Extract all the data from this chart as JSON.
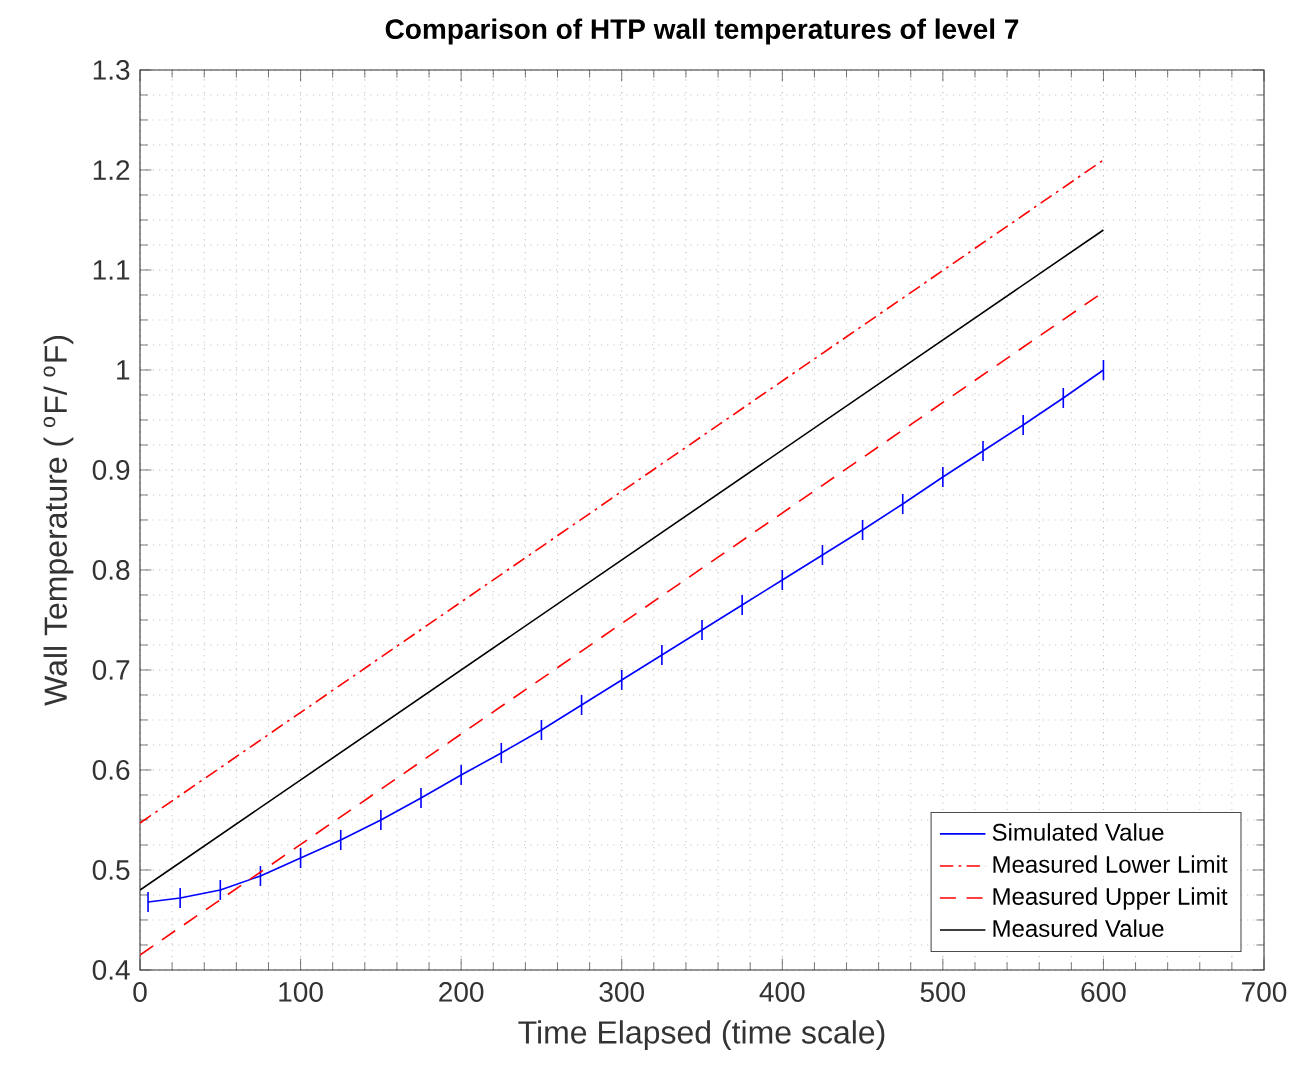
{
  "chart_data": {
    "type": "line",
    "title": "Comparison of HTP wall temperatures of level 7",
    "xlabel": "Time Elapsed (time scale)",
    "ylabel": "Wall Temperature ( $^{o}$F/ $^{o}$F)",
    "xlim": [
      0,
      700
    ],
    "ylim": [
      0.4,
      1.3
    ],
    "xticks": [
      0,
      100,
      200,
      300,
      400,
      500,
      600,
      700
    ],
    "yticks": [
      0.4,
      0.5,
      0.6,
      0.7,
      0.8,
      0.9,
      1,
      1.1,
      1.2,
      1.3
    ],
    "grid": true,
    "legend": "bottom right",
    "marker": "none",
    "series": [
      {
        "name": "Simulated Value",
        "color": "#0000ff",
        "line_style": "solid",
        "x": [
          5,
          25,
          50,
          75,
          100,
          125,
          150,
          175,
          200,
          225,
          250,
          275,
          300,
          325,
          350,
          375,
          400,
          425,
          450,
          475,
          500,
          525,
          550,
          575,
          600
        ],
        "values": [
          0.468,
          0.472,
          0.48,
          0.494,
          0.512,
          0.53,
          0.55,
          0.572,
          0.595,
          0.617,
          0.64,
          0.665,
          0.69,
          0.715,
          0.74,
          0.765,
          0.79,
          0.815,
          0.84,
          0.866,
          0.893,
          0.919,
          0.945,
          0.972,
          1.0
        ],
        "errors": [
          0.01,
          0.01,
          0.01,
          0.01,
          0.01,
          0.01,
          0.01,
          0.01,
          0.01,
          0.01,
          0.01,
          0.01,
          0.01,
          0.01,
          0.01,
          0.01,
          0.01,
          0.01,
          0.01,
          0.01,
          0.01,
          0.01,
          0.01,
          0.01,
          0.01
        ]
      },
      {
        "name": "Measured Lower Limit",
        "color": "#ff0000",
        "line_style": "dashdot",
        "x": [
          0,
          600
        ],
        "values": [
          0.547,
          1.21
        ]
      },
      {
        "name": "Measured Upper Limit",
        "color": "#ff0000",
        "line_style": "dashed",
        "x": [
          0,
          600
        ],
        "values": [
          0.415,
          1.078
        ]
      },
      {
        "name": "Measured Value",
        "color": "#000000",
        "line_style": "solid",
        "x": [
          0,
          600
        ],
        "values": [
          0.48,
          1.14
        ]
      }
    ]
  }
}
